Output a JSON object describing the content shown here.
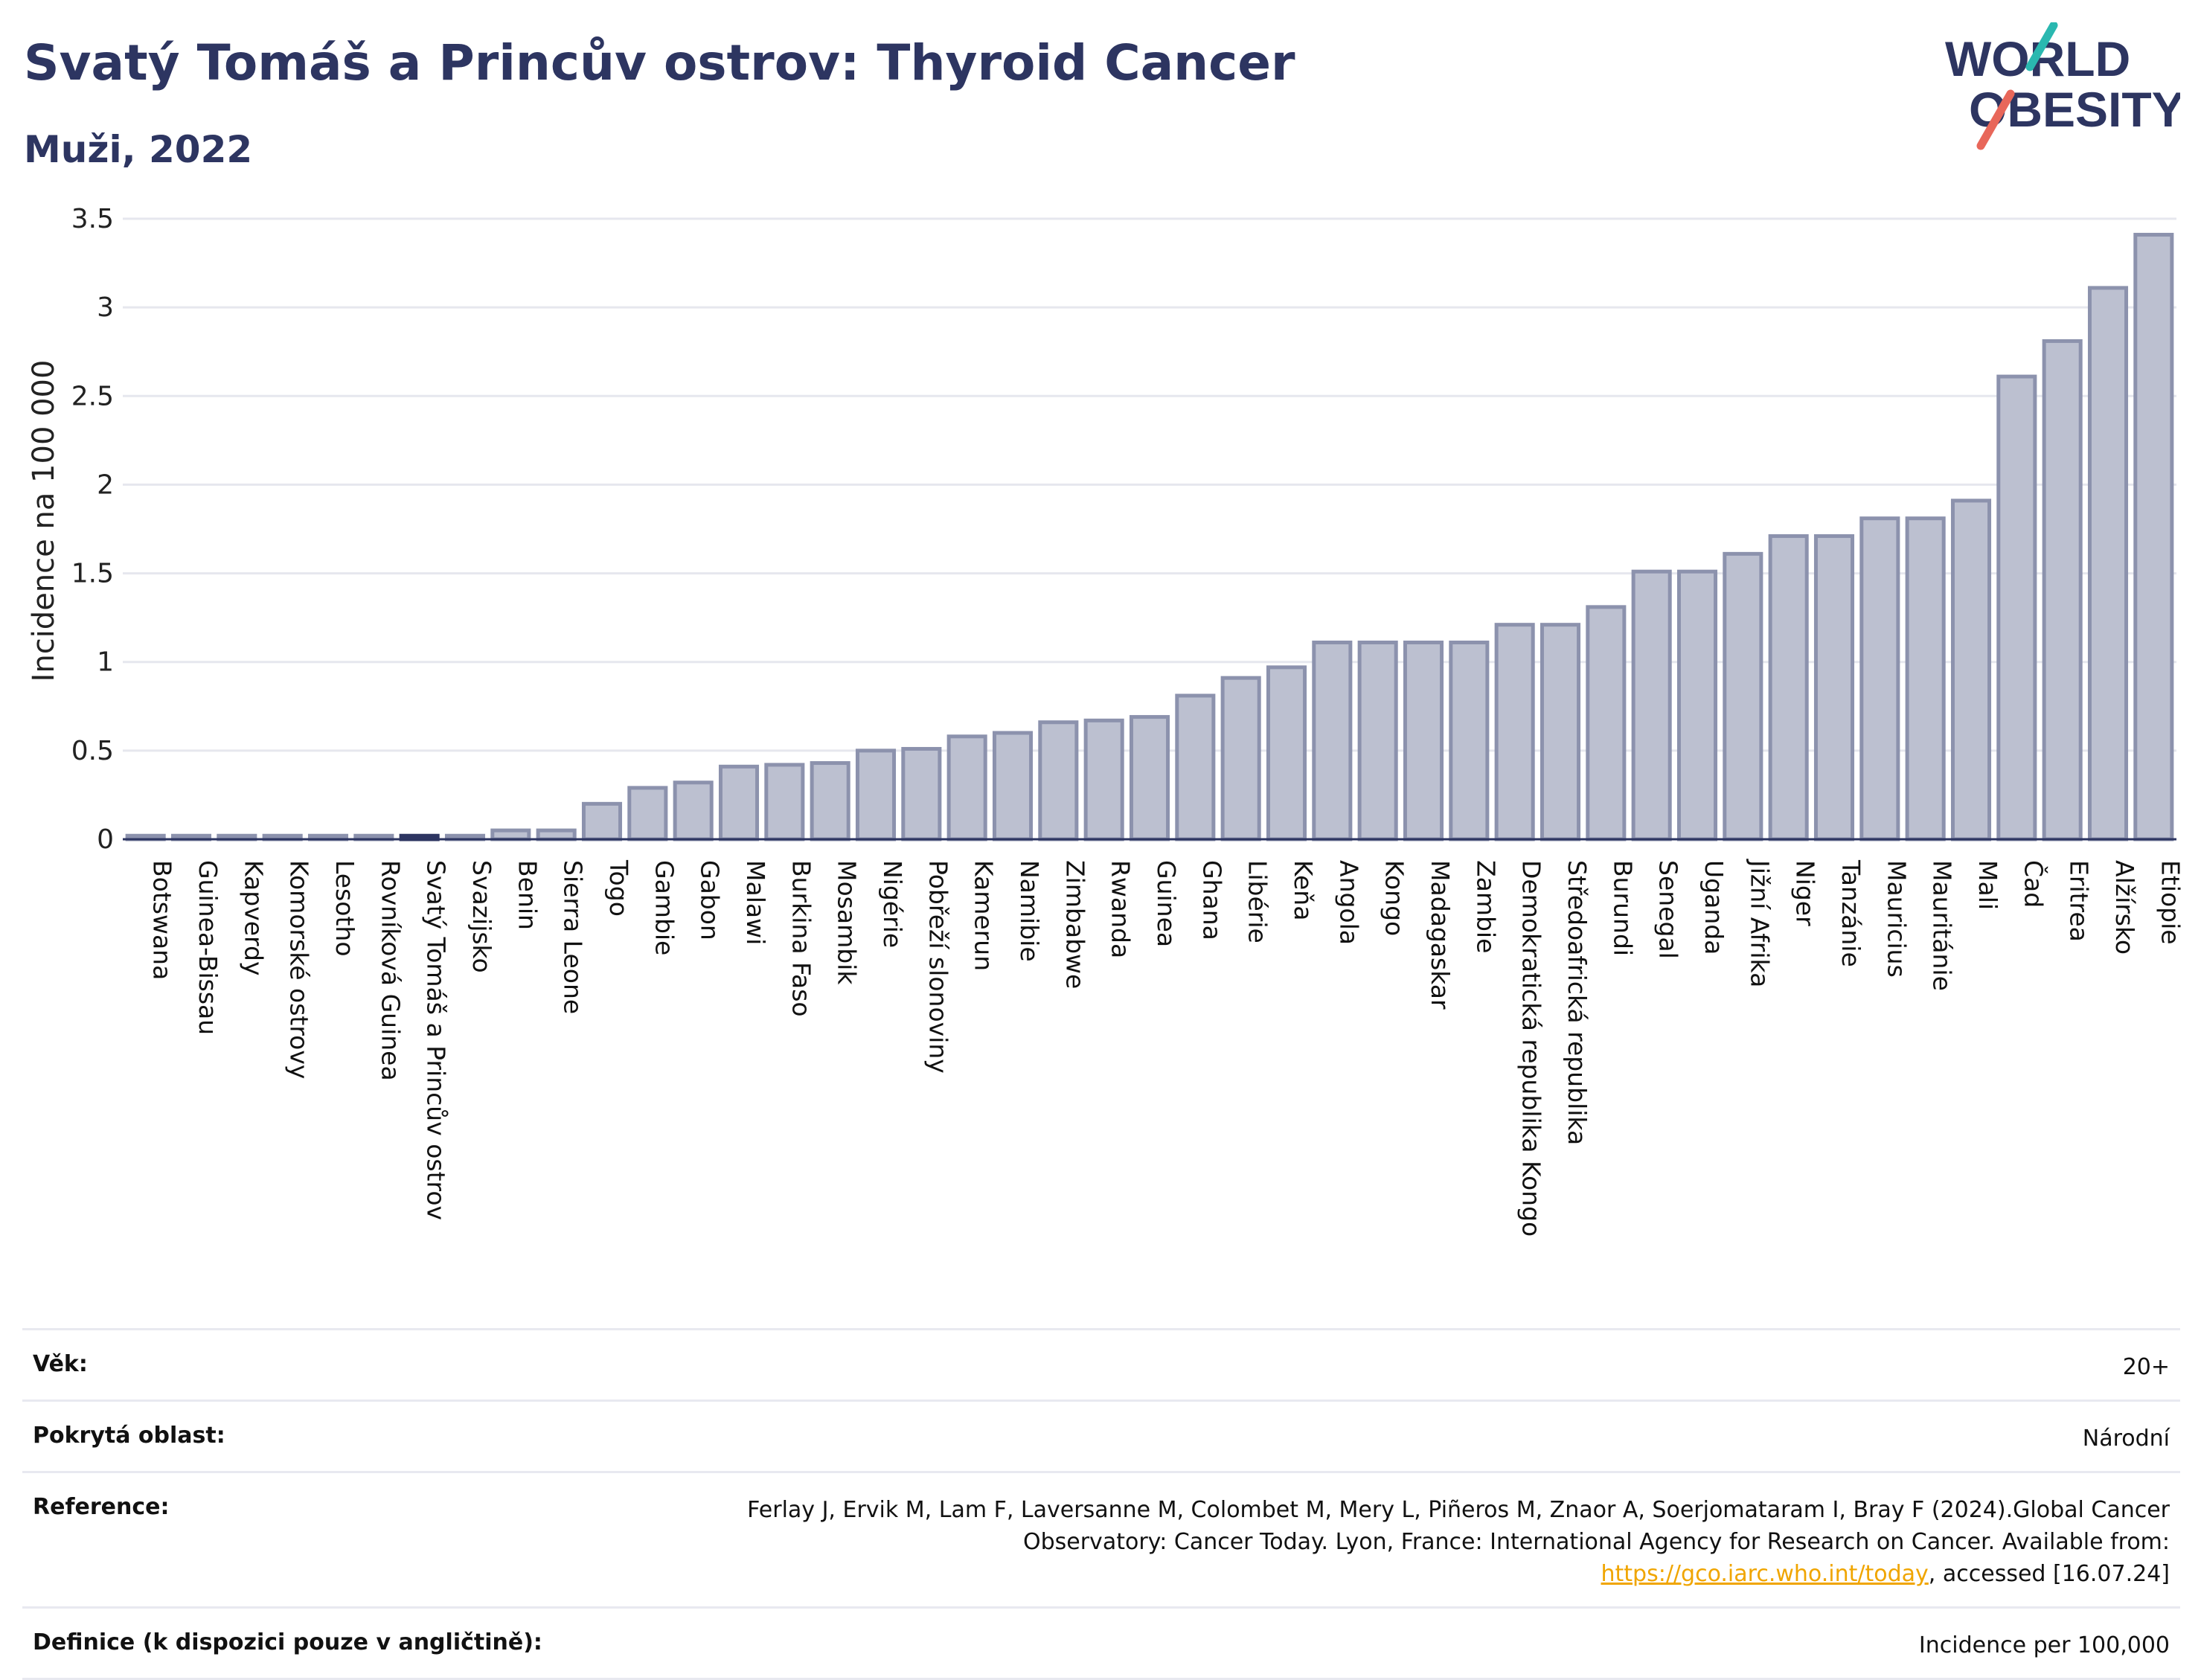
{
  "header": {
    "title": "Svatý Tomáš a Princův ostrov: Thyroid Cancer",
    "subtitle": "Muži, 2022"
  },
  "logo": {
    "line1": "WORLD",
    "line2": "OBESITY"
  },
  "chart_data": {
    "type": "bar",
    "ylabel": "Incidence na 100 000",
    "ylim": [
      0,
      3.5
    ],
    "yticks": [
      0,
      0.5,
      1,
      1.5,
      2,
      2.5,
      3,
      3.5
    ],
    "ytick_labels": [
      "0",
      "0.5",
      "1",
      "1.5",
      "2",
      "2.5",
      "3",
      "3.5"
    ],
    "grid": true,
    "highlight": "Svatý Tomáš a Princův ostrov",
    "colors": {
      "bar": "#bcc0d0",
      "bar_edge": "#8c92ad",
      "highlight": "#2d3561",
      "grid": "#e6e7ee"
    },
    "categories": [
      "Botswana",
      "Guinea-Bissau",
      "Kapverdy",
      "Komorské ostrovy",
      "Lesotho",
      "Rovníková Guinea",
      "Svatý Tomáš a Princův ostrov",
      "Svazijsko",
      "Benin",
      "Sierra Leone",
      "Togo",
      "Gambie",
      "Gabon",
      "Malawi",
      "Burkina Faso",
      "Mosambik",
      "Nigérie",
      "Pobřeží slonoviny",
      "Kamerun",
      "Namibie",
      "Zimbabwe",
      "Rwanda",
      "Guinea",
      "Ghana",
      "Libérie",
      "Keňa",
      "Angola",
      "Kongo",
      "Madagaskar",
      "Zambie",
      "Demokratická republika Kongo",
      "Středoafrická republika",
      "Burundi",
      "Senegal",
      "Uganda",
      "Jižní Afrika",
      "Niger",
      "Tanzánie",
      "Mauricius",
      "Mauritánie",
      "Mali",
      "Čad",
      "Eritrea",
      "Alžírsko",
      "Etiopie"
    ],
    "values": [
      0.02,
      0.02,
      0.02,
      0.02,
      0.02,
      0.02,
      0.02,
      0.02,
      0.05,
      0.05,
      0.2,
      0.29,
      0.32,
      0.41,
      0.42,
      0.43,
      0.5,
      0.51,
      0.58,
      0.6,
      0.66,
      0.67,
      0.69,
      0.81,
      0.91,
      0.97,
      1.11,
      1.11,
      1.11,
      1.11,
      1.21,
      1.21,
      1.31,
      1.51,
      1.51,
      1.61,
      1.71,
      1.71,
      1.81,
      1.81,
      1.91,
      2.61,
      2.81,
      3.11,
      3.41
    ]
  },
  "info": {
    "age_label": "Věk:",
    "age_value": "20+",
    "area_label": "Pokrytá oblast:",
    "area_value": "Národní",
    "ref_label": "Reference:",
    "ref_text": "Ferlay J, Ervik M, Lam F, Laversanne M, Colombet M, Mery L, Piñeros M, Znaor A, Soerjomataram I, Bray F (2024).Global Cancer Observatory: Cancer Today. Lyon, France: International Agency for Research on Cancer. Available from: ",
    "ref_link": "https://gco.iarc.who.int/today",
    "ref_tail": ", accessed [16.07.24]",
    "def_label": "Definice (k dispozici pouze v angličtině):",
    "def_value": "Incidence per 100,000"
  }
}
